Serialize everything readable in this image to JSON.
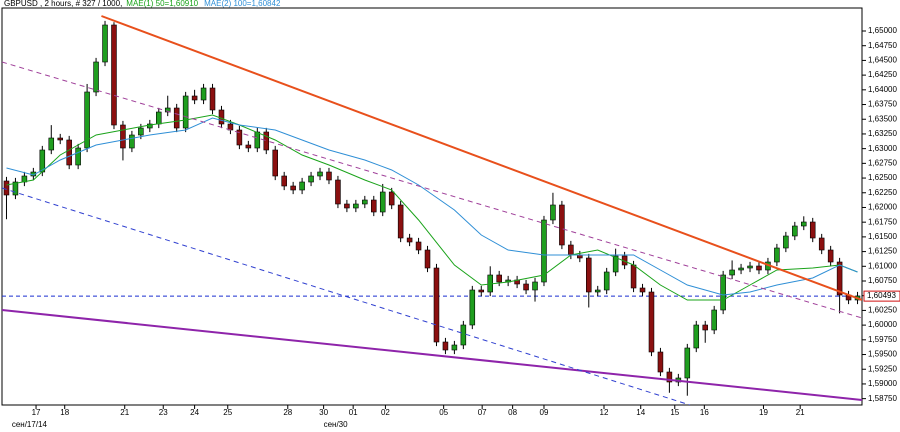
{
  "chart_data": {
    "type": "candlestick",
    "title": "GBPUSD , 2 hours, # 327 / 1000,",
    "up_color": "#1f9e1f",
    "down_color": "#8b1010",
    "xlim": [
      -0.5,
      95.5
    ],
    "ylim": [
      1.58642,
      1.65391
    ],
    "open": [
      1.6245,
      1.62212,
      1.62433,
      1.62535,
      1.62603,
      1.62977,
      1.63181,
      1.63147,
      1.62722,
      1.63011,
      1.63963,
      1.64473,
      1.65102,
      1.63402,
      1.63011,
      1.63232,
      1.63351,
      1.63419,
      1.63623,
      1.63691,
      1.63351,
      1.63895,
      1.63827,
      1.64031,
      1.63657,
      1.63419,
      1.63317,
      1.63062,
      1.63011,
      1.63283,
      1.62977,
      1.62535,
      1.62365,
      1.62297,
      1.62433,
      1.62535,
      1.62603,
      1.62467,
      1.62059,
      1.61991,
      1.62059,
      1.62127,
      1.61923,
      1.62263,
      1.62042,
      1.61481,
      1.61413,
      1.61277,
      1.60971,
      1.59713,
      1.59577,
      1.59662,
      1.60002,
      1.60597,
      1.60563,
      1.60852,
      1.60733,
      1.60767,
      1.60699,
      1.60597,
      1.60733,
      1.61787,
      1.62042,
      1.61362,
      1.61192,
      1.61141,
      1.60563,
      1.60597,
      1.60903,
      1.61175,
      1.61022,
      1.60631,
      1.60563,
      1.59543,
      1.59203,
      1.59033,
      1.59101,
      1.59611,
      1.60002,
      1.59917,
      1.60257,
      1.60852,
      1.60937,
      1.60971,
      1.61005,
      1.60937,
      1.61073,
      1.61311,
      1.61515,
      1.61685,
      1.61753,
      1.61481,
      1.61277,
      1.61073,
      1.60512,
      1.60427
    ],
    "high": [
      1.6252,
      1.62503,
      1.62605,
      1.62673,
      1.63047,
      1.634,
      1.63251,
      1.63217,
      1.63081,
      1.641,
      1.64543,
      1.65172,
      1.6515,
      1.63472,
      1.63302,
      1.63421,
      1.63489,
      1.63693,
      1.639,
      1.63761,
      1.63965,
      1.64,
      1.64101,
      1.64101,
      1.63727,
      1.63489,
      1.63387,
      1.63132,
      1.63353,
      1.63353,
      1.63047,
      1.62605,
      1.62435,
      1.62503,
      1.62605,
      1.62673,
      1.62673,
      1.62537,
      1.62129,
      1.62129,
      1.62197,
      1.62197,
      1.624,
      1.62333,
      1.62112,
      1.61551,
      1.61483,
      1.61347,
      1.61041,
      1.59783,
      1.59732,
      1.60072,
      1.60667,
      1.60667,
      1.61,
      1.60922,
      1.60837,
      1.60837,
      1.60769,
      1.60803,
      1.61857,
      1.6225,
      1.62112,
      1.61432,
      1.61262,
      1.61211,
      1.60667,
      1.60973,
      1.613,
      1.61245,
      1.61092,
      1.60701,
      1.60633,
      1.59613,
      1.59273,
      1.59171,
      1.59681,
      1.60072,
      1.60072,
      1.60327,
      1.60922,
      1.611,
      1.61041,
      1.61075,
      1.61075,
      1.61143,
      1.61381,
      1.61585,
      1.61755,
      1.6185,
      1.61823,
      1.61551,
      1.61347,
      1.61143,
      1.60582,
      1.60565
    ],
    "low": [
      1.618,
      1.62142,
      1.62363,
      1.62465,
      1.62533,
      1.62907,
      1.63077,
      1.62652,
      1.62652,
      1.62941,
      1.63893,
      1.64403,
      1.63332,
      1.628,
      1.62941,
      1.63162,
      1.63281,
      1.63349,
      1.63553,
      1.63281,
      1.63281,
      1.63757,
      1.63757,
      1.63587,
      1.63349,
      1.63247,
      1.62992,
      1.62941,
      1.62941,
      1.62907,
      1.62465,
      1.62295,
      1.62227,
      1.62227,
      1.62363,
      1.62465,
      1.62397,
      1.61989,
      1.61921,
      1.61921,
      1.61989,
      1.61853,
      1.61853,
      1.61972,
      1.61411,
      1.61343,
      1.61207,
      1.60901,
      1.59643,
      1.59507,
      1.59507,
      1.59592,
      1.59932,
      1.60493,
      1.60493,
      1.60663,
      1.60663,
      1.60629,
      1.60527,
      1.604,
      1.60663,
      1.61717,
      1.61292,
      1.61122,
      1.61071,
      1.603,
      1.60493,
      1.60527,
      1.60833,
      1.60952,
      1.60561,
      1.60493,
      1.59473,
      1.59133,
      1.5885,
      1.58963,
      1.588,
      1.59541,
      1.597,
      1.59847,
      1.60187,
      1.60782,
      1.60867,
      1.60901,
      1.60867,
      1.60867,
      1.61003,
      1.61241,
      1.61445,
      1.61615,
      1.61411,
      1.61207,
      1.61003,
      1.602,
      1.60357,
      1.60357
    ],
    "close": [
      1.62212,
      1.62433,
      1.62535,
      1.62603,
      1.62977,
      1.63181,
      1.63147,
      1.62722,
      1.63011,
      1.63963,
      1.64473,
      1.65102,
      1.63402,
      1.63011,
      1.63232,
      1.63351,
      1.63419,
      1.63623,
      1.63691,
      1.63351,
      1.63895,
      1.63827,
      1.64031,
      1.63657,
      1.63419,
      1.63317,
      1.63062,
      1.63011,
      1.63283,
      1.62977,
      1.62535,
      1.62365,
      1.62297,
      1.62433,
      1.62535,
      1.62603,
      1.62467,
      1.62059,
      1.61991,
      1.62059,
      1.62127,
      1.61923,
      1.62263,
      1.62042,
      1.61481,
      1.61413,
      1.61277,
      1.60971,
      1.59713,
      1.59577,
      1.59662,
      1.60002,
      1.60597,
      1.60563,
      1.60852,
      1.60733,
      1.60767,
      1.60699,
      1.60597,
      1.60733,
      1.61787,
      1.62042,
      1.61362,
      1.61192,
      1.61141,
      1.60563,
      1.60597,
      1.60903,
      1.61175,
      1.61022,
      1.60631,
      1.60563,
      1.59543,
      1.59203,
      1.59033,
      1.59101,
      1.59611,
      1.60002,
      1.59917,
      1.60257,
      1.60852,
      1.60937,
      1.60971,
      1.61005,
      1.60937,
      1.61073,
      1.61311,
      1.61515,
      1.61685,
      1.61753,
      1.61481,
      1.61277,
      1.61073,
      1.60512,
      1.60427,
      1.60495
    ],
    "series": [
      {
        "name": "MAE(1) 50=1,60910",
        "color": "#1aa31a",
        "x": [
          0,
          3,
          6,
          10,
          13,
          16,
          20,
          23,
          26,
          30,
          33,
          36,
          40,
          43,
          46,
          50,
          53,
          56,
          60,
          63,
          66,
          70,
          73,
          76,
          80,
          83,
          86,
          90,
          93,
          95
        ],
        "values": [
          1.62382,
          1.62467,
          1.62892,
          1.63232,
          1.63317,
          1.63402,
          1.63487,
          1.63572,
          1.63402,
          1.63147,
          1.62892,
          1.62722,
          1.62467,
          1.62297,
          1.61787,
          1.61022,
          1.60682,
          1.60733,
          1.60852,
          1.61192,
          1.61277,
          1.61022,
          1.60682,
          1.60427,
          1.60427,
          1.60682,
          1.60937,
          1.60971,
          1.61022,
          1.60903
        ]
      },
      {
        "name": "MAE(2) 100=1,60842",
        "color": "#2f8fd6",
        "x": [
          0,
          3,
          6,
          10,
          13,
          16,
          20,
          23,
          26,
          30,
          33,
          36,
          40,
          43,
          46,
          50,
          53,
          56,
          60,
          63,
          66,
          70,
          73,
          76,
          80,
          83,
          86,
          90,
          93,
          95
        ],
        "values": [
          1.62671,
          1.62552,
          1.62807,
          1.63062,
          1.63147,
          1.63232,
          1.63317,
          1.63521,
          1.63402,
          1.63317,
          1.63147,
          1.62977,
          1.62807,
          1.62637,
          1.62382,
          1.61957,
          1.61532,
          1.61277,
          1.61192,
          1.61192,
          1.61192,
          1.61192,
          1.60937,
          1.60682,
          1.60512,
          1.60563,
          1.60682,
          1.60801,
          1.61022,
          1.60903
        ]
      }
    ],
    "trendlines": [
      {
        "color": "#e8501c",
        "dash": false,
        "x": [
          10.6,
          95.5
        ],
        "values": [
          1.65255,
          1.60427
        ]
      },
      {
        "color": "#8e24aa",
        "dash": false,
        "x": [
          -0.5,
          95.5
        ],
        "values": [
          1.60257,
          1.58727
        ]
      },
      {
        "color": "#a0409a",
        "dash": true,
        "x": [
          -0.5,
          95.5
        ],
        "values": [
          1.64473,
          1.60121
        ]
      },
      {
        "color": "#3040d0",
        "dash": true,
        "x": [
          -0.5,
          76.3
        ],
        "values": [
          1.62331,
          1.58642
        ]
      }
    ],
    "current_price": {
      "value": 1.60493,
      "label": "1,60493"
    },
    "yticks": [
      {
        "value": 1.5875,
        "label": "1,58750"
      },
      {
        "value": 1.59,
        "label": "1,59000"
      },
      {
        "value": 1.5925,
        "label": "1,59250"
      },
      {
        "value": 1.595,
        "label": "1,59500"
      },
      {
        "value": 1.5975,
        "label": "1,59750"
      },
      {
        "value": 1.6,
        "label": "1,60000"
      },
      {
        "value": 1.6025,
        "label": "1,60250"
      },
      {
        "value": 1.605,
        "label": "1,60500"
      },
      {
        "value": 1.6075,
        "label": "1,60750"
      },
      {
        "value": 1.61,
        "label": "1,61000"
      },
      {
        "value": 1.6125,
        "label": "1,61250"
      },
      {
        "value": 1.615,
        "label": "1,61500"
      },
      {
        "value": 1.6175,
        "label": "1,61750"
      },
      {
        "value": 1.62,
        "label": "1,62000"
      },
      {
        "value": 1.6225,
        "label": "1,62250"
      },
      {
        "value": 1.625,
        "label": "1,62500"
      },
      {
        "value": 1.6275,
        "label": "1,62750"
      },
      {
        "value": 1.63,
        "label": "1,63000"
      },
      {
        "value": 1.6325,
        "label": "1,63250"
      },
      {
        "value": 1.635,
        "label": "1,63500"
      },
      {
        "value": 1.6375,
        "label": "1,63750"
      },
      {
        "value": 1.64,
        "label": "1,64000"
      },
      {
        "value": 1.6425,
        "label": "1,64250"
      },
      {
        "value": 1.645,
        "label": "1,64500"
      },
      {
        "value": 1.6475,
        "label": "1,64750"
      },
      {
        "value": 1.65,
        "label": "1,65000"
      }
    ],
    "xticks": [
      {
        "value": 3.3,
        "label": "17"
      },
      {
        "value": 6.5,
        "label": "18"
      },
      {
        "value": 13.2,
        "label": "21"
      },
      {
        "value": 17.5,
        "label": "23"
      },
      {
        "value": 21.0,
        "label": "24"
      },
      {
        "value": 24.7,
        "label": "25"
      },
      {
        "value": 31.4,
        "label": "28"
      },
      {
        "value": 35.4,
        "label": "30"
      },
      {
        "value": 38.7,
        "label": "01"
      },
      {
        "value": 42.3,
        "label": "02"
      },
      {
        "value": 48.8,
        "label": "05"
      },
      {
        "value": 53.1,
        "label": "07"
      },
      {
        "value": 56.5,
        "label": "08"
      },
      {
        "value": 60.0,
        "label": "09"
      },
      {
        "value": 66.7,
        "label": "12"
      },
      {
        "value": 70.8,
        "label": "14"
      },
      {
        "value": 74.6,
        "label": "15"
      },
      {
        "value": 77.9,
        "label": "16"
      },
      {
        "value": 84.5,
        "label": "19"
      },
      {
        "value": 88.6,
        "label": "21"
      }
    ],
    "xticks2": [
      {
        "value": 0.6,
        "label": "сен/17/14"
      },
      {
        "value": 35.4,
        "label": "сен/30"
      }
    ]
  }
}
